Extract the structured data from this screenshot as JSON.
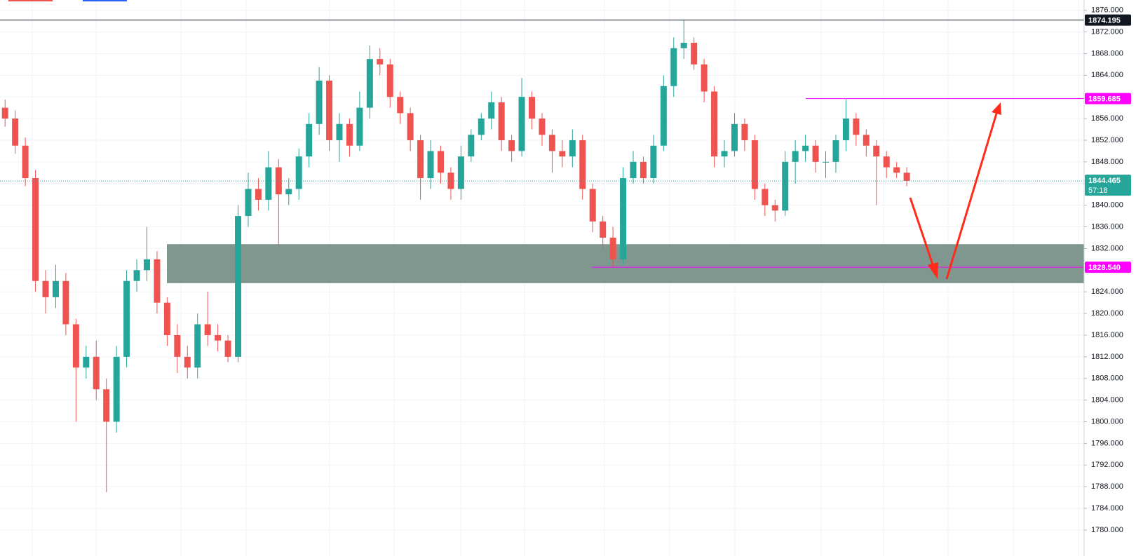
{
  "chart_data": {
    "type": "candlestick",
    "open": [
      1858,
      1856,
      1851,
      1845,
      1826,
      1823,
      1826,
      1818,
      1810,
      1812,
      1806,
      1800,
      1812,
      1826,
      1828,
      1830,
      1822,
      1816,
      1812,
      1810,
      1818,
      1816,
      1815,
      1812,
      1838,
      1843,
      1841,
      1847,
      1842,
      1843,
      1849,
      1855,
      1863,
      1852,
      1855,
      1851,
      1858,
      1867,
      1866,
      1860,
      1857,
      1852,
      1845,
      1850,
      1846,
      1843,
      1849,
      1853,
      1856,
      1859,
      1852,
      1850,
      1860,
      1856,
      1853,
      1850,
      1849,
      1852,
      1843,
      1837,
      1834,
      1830,
      1845,
      1848,
      1845,
      1851,
      1862,
      1869,
      1870,
      1866,
      1861,
      1849,
      1850,
      1855,
      1852,
      1843,
      1840,
      1839,
      1848,
      1850,
      1851,
      1848,
      1848,
      1852,
      1856,
      1853,
      1851,
      1849,
      1847,
      1846
    ],
    "high": [
      1859.5,
      1857.5,
      1852.5,
      1846.5,
      1828,
      1829,
      1827.5,
      1819,
      1814,
      1815,
      1808,
      1814,
      1828,
      1830,
      1836,
      1831.5,
      1823,
      1818,
      1814,
      1820,
      1824,
      1818,
      1816,
      1840,
      1846,
      1845,
      1850,
      1848.5,
      1845,
      1850.5,
      1857,
      1865.5,
      1864,
      1857,
      1856,
      1861,
      1869.5,
      1869,
      1867,
      1861,
      1858,
      1853,
      1852,
      1851,
      1847,
      1851,
      1854,
      1857,
      1861,
      1860,
      1853,
      1863.5,
      1861,
      1857,
      1854,
      1852,
      1854,
      1853,
      1844,
      1838,
      1836,
      1847,
      1850,
      1849,
      1853,
      1864,
      1871,
      1874.2,
      1871,
      1867,
      1862,
      1852,
      1857,
      1856,
      1853,
      1844,
      1841,
      1850,
      1852,
      1853,
      1852,
      1850,
      1853,
      1859.7,
      1857,
      1854,
      1852,
      1850,
      1848,
      1847
    ],
    "low": [
      1854.5,
      1849.5,
      1843.5,
      1824,
      1820,
      1821,
      1816,
      1800,
      1808,
      1804,
      1787,
      1798,
      1810,
      1824,
      1826,
      1820,
      1814,
      1809,
      1808,
      1808,
      1814,
      1813,
      1811,
      1811,
      1836,
      1839,
      1839,
      1832.5,
      1840,
      1841,
      1847,
      1853,
      1850,
      1848,
      1849,
      1850,
      1856,
      1864,
      1858,
      1855,
      1850,
      1841,
      1843,
      1844,
      1841,
      1841,
      1848,
      1852,
      1854,
      1850,
      1848,
      1849,
      1854,
      1851,
      1846,
      1847,
      1847,
      1841,
      1835,
      1832,
      1828.5,
      1829,
      1844,
      1844,
      1844,
      1850,
      1860,
      1867,
      1865,
      1859,
      1847,
      1847,
      1849,
      1850,
      1841,
      1838,
      1837,
      1838,
      1844,
      1848,
      1846,
      1845,
      1846,
      1850,
      1851,
      1849,
      1840,
      1845,
      1845,
      1843.5
    ],
    "close": [
      1856,
      1851,
      1845,
      1826,
      1823,
      1826,
      1818,
      1810,
      1812,
      1806,
      1800,
      1812,
      1826,
      1828,
      1830,
      1822,
      1816,
      1812,
      1810,
      1818,
      1816,
      1815,
      1812,
      1838,
      1843,
      1841,
      1847,
      1842,
      1843,
      1849,
      1855,
      1863,
      1852,
      1855,
      1851,
      1858,
      1867,
      1866,
      1860,
      1857,
      1852,
      1845,
      1850,
      1846,
      1843,
      1849,
      1853,
      1856,
      1859,
      1852,
      1850,
      1860,
      1856,
      1853,
      1850,
      1849,
      1852,
      1843,
      1837,
      1834,
      1830,
      1845,
      1848,
      1845,
      1851,
      1862,
      1869,
      1870,
      1866,
      1861,
      1849,
      1850,
      1855,
      1852,
      1843,
      1840,
      1839,
      1848,
      1850,
      1851,
      1848,
      1848,
      1852,
      1856,
      1853,
      1851,
      1849,
      1847,
      1846,
      1844.5
    ],
    "up_color": "#26a69a",
    "down_color": "#ef5350",
    "ylim": [
      1775.2,
      1877.9
    ],
    "yticks": [
      {
        "value": 1780,
        "label": "1780.000"
      },
      {
        "value": 1784,
        "label": "1784.000"
      },
      {
        "value": 1788,
        "label": "1788.000"
      },
      {
        "value": 1792,
        "label": "1792.000"
      },
      {
        "value": 1796,
        "label": "1796.000"
      },
      {
        "value": 1800,
        "label": "1800.000"
      },
      {
        "value": 1804,
        "label": "1804.000"
      },
      {
        "value": 1808,
        "label": "1808.000"
      },
      {
        "value": 1812,
        "label": "1812.000"
      },
      {
        "value": 1816,
        "label": "1816.000"
      },
      {
        "value": 1820,
        "label": "1820.000"
      },
      {
        "value": 1824,
        "label": "1824.000"
      },
      {
        "value": 1828,
        "label": "1828.000"
      },
      {
        "value": 1832,
        "label": "1832.000"
      },
      {
        "value": 1836,
        "label": "1836.000"
      },
      {
        "value": 1840,
        "label": "1840.000"
      },
      {
        "value": 1844,
        "label": "1844.000"
      },
      {
        "value": 1848,
        "label": "1848.000"
      },
      {
        "value": 1852,
        "label": "1852.000"
      },
      {
        "value": 1856,
        "label": "1856.000"
      },
      {
        "value": 1860,
        "label": "1860.000"
      },
      {
        "value": 1864,
        "label": "1864.000"
      },
      {
        "value": 1868,
        "label": "1868.000"
      },
      {
        "value": 1872,
        "label": "1872.000"
      },
      {
        "value": 1876,
        "label": "1876.000"
      }
    ],
    "grid": true,
    "levels": [
      {
        "value": 1874.195,
        "label": "1874.195",
        "color": "#131722"
      },
      {
        "value": 1859.685,
        "label": "1859.685",
        "color": "#ff00ff"
      },
      {
        "value": 1828.54,
        "label": "1828.540",
        "color": "#ff00ff"
      }
    ],
    "last_price": {
      "value": 1844.465,
      "label": "1844.465",
      "countdown": "57:18",
      "color": "#26a69a"
    },
    "zone": {
      "low": 1825.6,
      "high": 1832.8,
      "color": "#7f978f"
    }
  }
}
